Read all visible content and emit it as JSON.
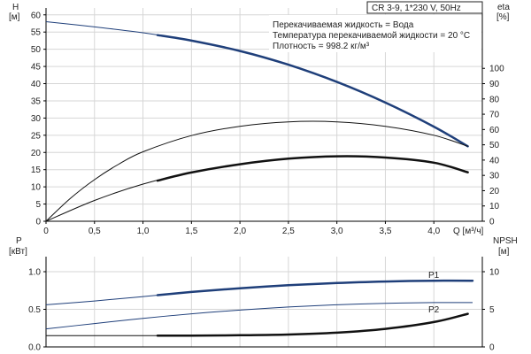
{
  "chart_data": [
    {
      "type": "line",
      "title": "CR 3-9, 1*230 V, 50Hz",
      "annotations": [
        "Перекачиваемая жидкость = Вода",
        "Температура перекачиваемой жидкости = 20 °C",
        "Плотность = 998.2 кг/м³"
      ],
      "xlabel": "Q [м³/ч]",
      "xlim": [
        0,
        4.5
      ],
      "x_ticks": [
        "0",
        "0,5",
        "1,0",
        "1,5",
        "2,0",
        "2,5",
        "3,0",
        "3,5",
        "4,0"
      ],
      "y_left": {
        "label_line1": "H",
        "label_line2": "[м]",
        "lim": [
          0,
          62
        ],
        "ticks": [
          "0",
          "5",
          "10",
          "15",
          "20",
          "25",
          "30",
          "35",
          "40",
          "45",
          "50",
          "55",
          "60"
        ]
      },
      "y_right": {
        "label_line1": "eta",
        "label_line2": "[%]",
        "lim": [
          0,
          139.5
        ],
        "ticks": [
          "0",
          "10",
          "20",
          "30",
          "40",
          "50",
          "60",
          "70",
          "80",
          "90",
          "100"
        ]
      },
      "grid": true,
      "series": [
        {
          "axis": "left",
          "color": "#1f3f7a",
          "x": [
            0,
            0.5,
            1.0,
            1.5,
            2.0,
            2.5,
            3.0,
            3.5,
            4.0,
            4.35
          ],
          "values": [
            58,
            56.5,
            54.8,
            52.5,
            49.5,
            45.5,
            40.5,
            34.5,
            27.5,
            21.8
          ],
          "thick_from": 1.15
        },
        {
          "axis": "left",
          "color": "#111111",
          "x": [
            0,
            0.25,
            0.5,
            0.75,
            1.0,
            1.5,
            2.0,
            2.5,
            3.0,
            3.5,
            4.0,
            4.35
          ],
          "values": [
            0,
            6.6,
            12.1,
            16.6,
            20.2,
            24.9,
            27.6,
            28.9,
            28.9,
            27.6,
            25.0,
            21.8
          ],
          "thick_from": null
        },
        {
          "axis": "right",
          "color": "#111111",
          "x": [
            0,
            0.5,
            1.0,
            1.5,
            2.0,
            2.5,
            3.0,
            3.5,
            4.0,
            4.35
          ],
          "values": [
            0,
            13.6,
            24.3,
            31.9,
            37.3,
            40.9,
            42.5,
            41.7,
            38.3,
            32.0
          ],
          "thick_from": 1.15
        }
      ]
    },
    {
      "type": "line",
      "xlim": [
        0,
        4.5
      ],
      "y_left": {
        "label_line1": "P",
        "label_line2": "[кВт]",
        "lim": [
          0,
          1.2
        ],
        "ticks": [
          "0.0",
          "0.5",
          "1.0"
        ]
      },
      "y_right": {
        "label_line1": "NPSH",
        "label_line2": "[м]",
        "lim": [
          0,
          12
        ],
        "ticks": [
          "0",
          "5",
          "10"
        ]
      },
      "grid": true,
      "series": [
        {
          "name": "P1",
          "axis": "left",
          "color": "#1f3f7a",
          "x": [
            0,
            0.5,
            1.0,
            1.5,
            2.0,
            2.5,
            3.0,
            3.5,
            4.0,
            4.4
          ],
          "values": [
            0.56,
            0.61,
            0.67,
            0.73,
            0.78,
            0.82,
            0.85,
            0.87,
            0.88,
            0.88
          ],
          "thick_from": 1.15
        },
        {
          "name": "P2",
          "axis": "left",
          "color": "#1f3f7a",
          "x": [
            0,
            0.5,
            1.0,
            1.5,
            2.0,
            2.5,
            3.0,
            3.5,
            4.0,
            4.4
          ],
          "values": [
            0.24,
            0.31,
            0.38,
            0.44,
            0.49,
            0.53,
            0.56,
            0.58,
            0.59,
            0.59
          ],
          "thick_from": null
        },
        {
          "axis": "right",
          "color": "#111111",
          "x": [
            0,
            1.0,
            1.15,
            1.5,
            2.0,
            2.5,
            3.0,
            3.5,
            4.0,
            4.35
          ],
          "values": [
            1.5,
            1.5,
            1.5,
            1.5,
            1.55,
            1.65,
            1.9,
            2.4,
            3.3,
            4.4
          ],
          "thick_from": 1.15
        }
      ]
    }
  ]
}
